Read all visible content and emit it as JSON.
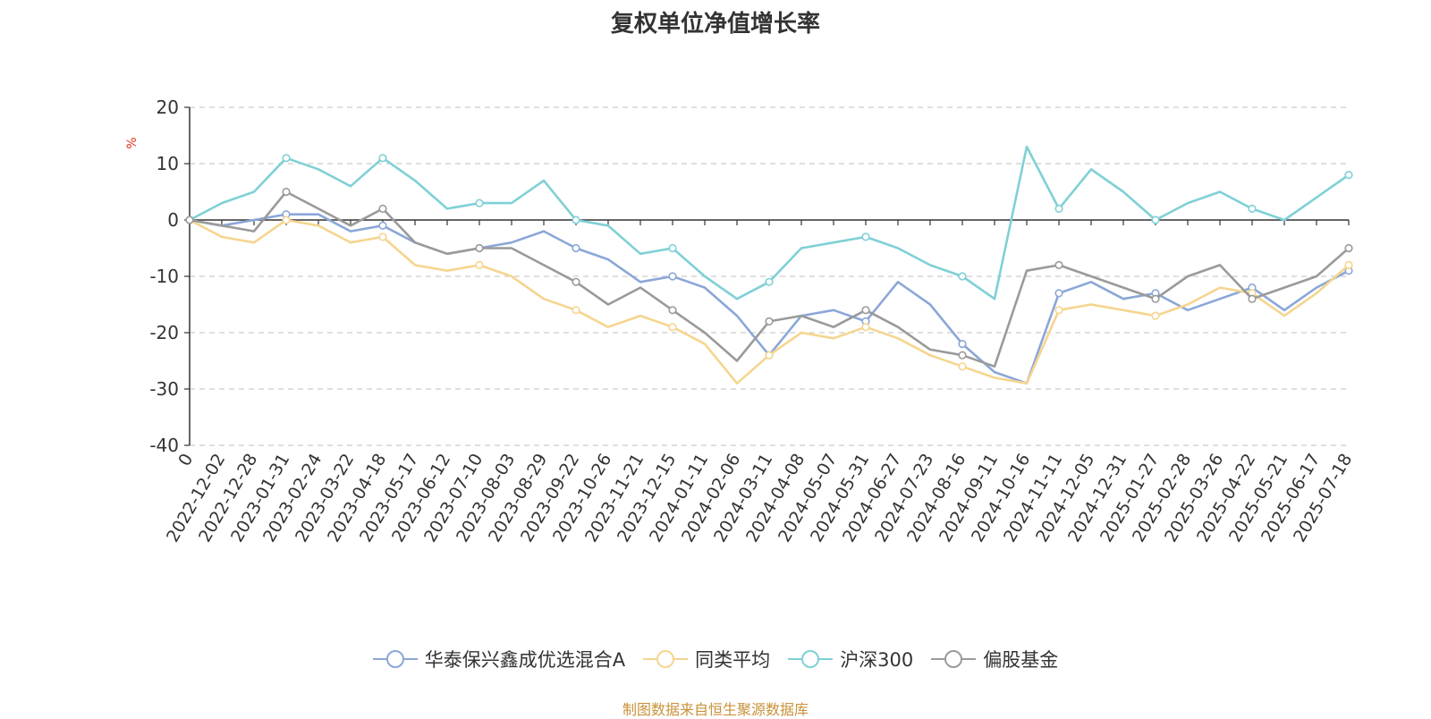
{
  "chart_data": {
    "type": "line",
    "title": "复权单位净值增长率",
    "ylabel": "%",
    "ylim": [
      -40,
      20
    ],
    "yticks": [
      20,
      10,
      0,
      -10,
      -20,
      -30,
      -40
    ],
    "grid": true,
    "legend_position": "bottom",
    "x_categories": [
      "0",
      "2022-12-02",
      "2022-12-28",
      "2023-01-31",
      "2023-02-24",
      "2023-03-22",
      "2023-04-18",
      "2023-05-17",
      "2023-06-12",
      "2023-07-10",
      "2023-08-03",
      "2023-08-29",
      "2023-09-22",
      "2023-10-26",
      "2023-11-21",
      "2023-12-15",
      "2024-01-11",
      "2024-02-06",
      "2024-03-11",
      "2024-04-08",
      "2024-05-07",
      "2024-05-31",
      "2024-06-27",
      "2024-07-23",
      "2024-08-16",
      "2024-09-11",
      "2024-10-16",
      "2024-11-11",
      "2024-12-05",
      "2024-12-31",
      "2025-01-27",
      "2025-02-28",
      "2025-03-26",
      "2025-04-22",
      "2025-05-21",
      "2025-06-17",
      "2025-07-18"
    ],
    "series": [
      {
        "name": "华泰保兴鑫成优选混合A",
        "color": "#8ba7d8",
        "values": [
          0,
          -1,
          0,
          1,
          1,
          -2,
          -1,
          -4,
          -6,
          -5,
          -4,
          -2,
          -5,
          -7,
          -11,
          -10,
          -12,
          -17,
          -24,
          -17,
          -16,
          -18,
          -11,
          -15,
          -22,
          -27,
          -29,
          -13,
          -11,
          -14,
          -13,
          -16,
          -14,
          -12,
          -16,
          -12,
          -9
        ]
      },
      {
        "name": "同类平均",
        "color": "#f5d58f",
        "values": [
          0,
          -3,
          -4,
          0,
          -1,
          -4,
          -3,
          -8,
          -9,
          -8,
          -10,
          -14,
          -16,
          -19,
          -17,
          -19,
          -22,
          -29,
          -24,
          -20,
          -21,
          -19,
          -21,
          -24,
          -26,
          -28,
          -29,
          -16,
          -15,
          -16,
          -17,
          -15,
          -12,
          -13,
          -17,
          -13,
          -8
        ]
      },
      {
        "name": "沪深300",
        "color": "#7fd0d6",
        "values": [
          0,
          3,
          5,
          11,
          9,
          6,
          11,
          7,
          2,
          3,
          3,
          7,
          0,
          -1,
          -6,
          -5,
          -10,
          -14,
          -11,
          -5,
          -4,
          -3,
          -5,
          -8,
          -10,
          -14,
          13,
          2,
          9,
          5,
          0,
          3,
          5,
          2,
          0,
          4,
          8
        ]
      },
      {
        "name": "偏股基金",
        "color": "#9a9a9a",
        "values": [
          0,
          -1,
          -2,
          5,
          2,
          -1,
          2,
          -4,
          -6,
          -5,
          -5,
          -8,
          -11,
          -15,
          -12,
          -16,
          -20,
          -25,
          -18,
          -17,
          -19,
          -16,
          -19,
          -23,
          -24,
          -26,
          -9,
          -8,
          -10,
          -12,
          -14,
          -10,
          -8,
          -14,
          -12,
          -10,
          -5
        ]
      }
    ]
  },
  "source_note": "制图数据来自恒生聚源数据库"
}
